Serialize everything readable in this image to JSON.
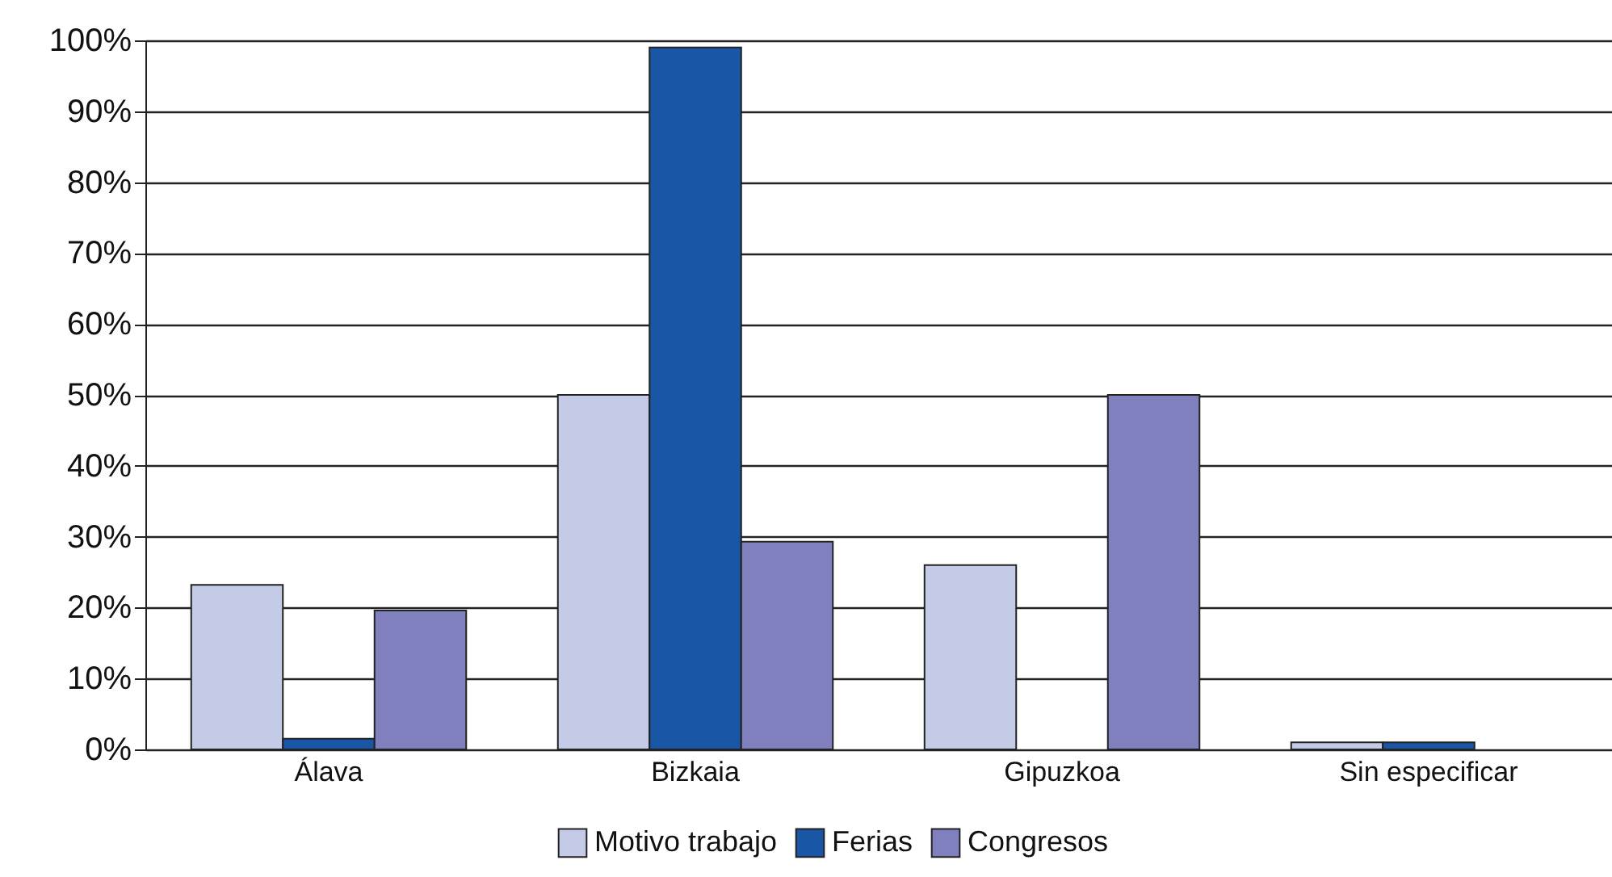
{
  "chart_data": {
    "type": "bar",
    "categories": [
      "Álava",
      "Bizkaia",
      "Gipuzkoa",
      "Sin especificar"
    ],
    "series": [
      {
        "name": "Motivo trabajo",
        "color": "#c3cbe6",
        "values": [
          23.2,
          50,
          26,
          1
        ]
      },
      {
        "name": "Ferias",
        "color": "#1a56a6",
        "values": [
          1.5,
          99,
          null,
          1
        ]
      },
      {
        "name": "Congresos",
        "color": "#8080bf",
        "values": [
          19.6,
          29.3,
          50,
          null
        ]
      }
    ],
    "ylim": [
      0,
      100
    ],
    "yticks": [
      {
        "value": 0,
        "label": "0%"
      },
      {
        "value": 10,
        "label": "10%"
      },
      {
        "value": 20,
        "label": "20%"
      },
      {
        "value": 30,
        "label": "30%"
      },
      {
        "value": 40,
        "label": "40%"
      },
      {
        "value": 50,
        "label": "50%"
      },
      {
        "value": 60,
        "label": "60%"
      },
      {
        "value": 70,
        "label": "70%"
      },
      {
        "value": 80,
        "label": "80%"
      },
      {
        "value": 90,
        "label": "90%"
      },
      {
        "value": 100,
        "label": "100%"
      }
    ],
    "grid": "y",
    "legend": "bottom"
  }
}
